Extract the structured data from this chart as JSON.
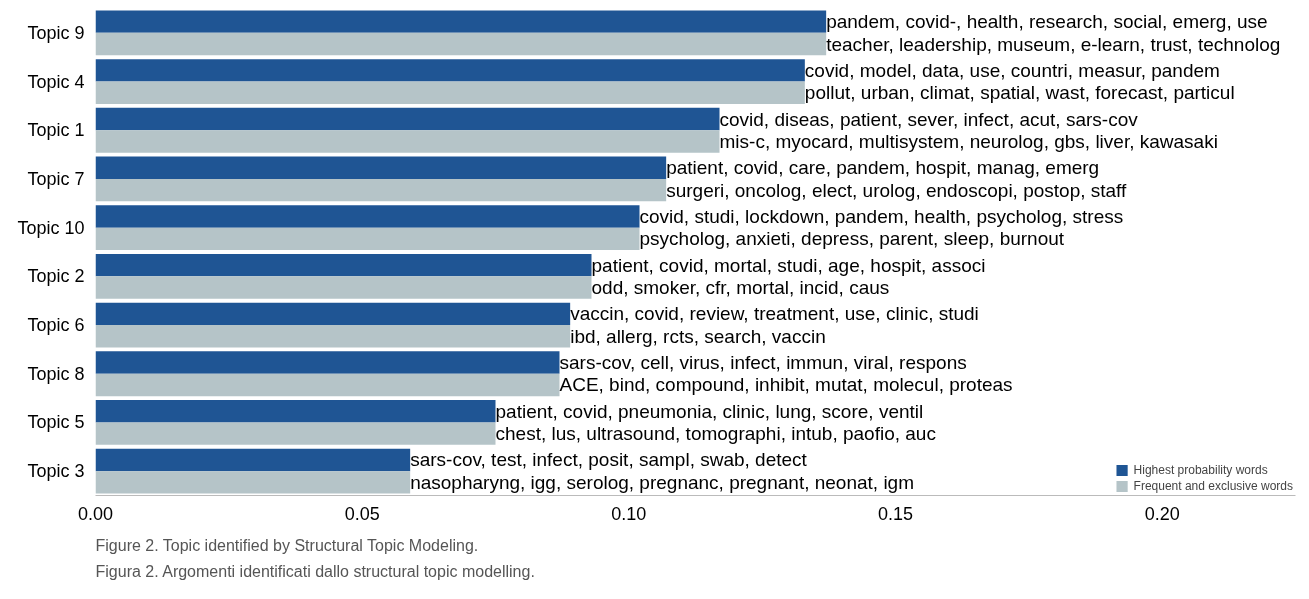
{
  "chart_data": {
    "type": "bar",
    "orientation": "horizontal",
    "categories": [
      "Topic 9",
      "Topic 4",
      "Topic 1",
      "Topic 7",
      "Topic 10",
      "Topic 2",
      "Topic 6",
      "Topic 8",
      "Topic 5",
      "Topic 3"
    ],
    "series": [
      {
        "name": "Highest probability words",
        "color": "#1f5594",
        "values": [
          0.137,
          0.133,
          0.117,
          0.107,
          0.102,
          0.093,
          0.089,
          0.087,
          0.075,
          0.059
        ],
        "value_labels": [
          "pandem, covid-, health, research, social, emerg, use",
          "covid, model, data, use, countri, measur, pandem",
          "covid, diseas, patient, sever, infect, acut, sars-cov",
          "patient, covid, care, pandem, hospit, manag, emerg",
          "covid, studi, lockdown, pandem, health, psycholog, stress",
          "patient, covid, mortal, studi, age, hospit, associ",
          "vaccin, covid, review, treatment, use, clinic, studi",
          "sars-cov, cell, virus, infect, immun, viral, respons",
          "patient, covid, pneumonia, clinic, lung, score, ventil",
          "sars-cov, test, infect, posit, sampl, swab, detect"
        ]
      },
      {
        "name": "Frequent and exclusive words",
        "color": "#b5c4c8",
        "values": [
          0.137,
          0.133,
          0.117,
          0.107,
          0.102,
          0.093,
          0.089,
          0.087,
          0.075,
          0.059
        ],
        "value_labels": [
          "teacher, leadership, museum, e-learn, trust, technolog",
          "pollut, urban, climat, spatial, wast, forecast, particul",
          "mis-c, myocard, multisystem, neurolog, gbs, liver, kawasaki",
          "surgeri, oncolog, elect, urolog, endoscopi, postop, staff",
          "psycholog, anxieti, depress, parent, sleep, burnout",
          "odd, smoker, cfr, mortal, incid, caus",
          "ibd, allerg, rcts, search, vaccin",
          "ACE, bind, compound, inhibit, mutat, molecul, proteas",
          "chest, lus, ultrasound, tomographi, intub, paofio, auc",
          "nasopharyng, igg, serolog, pregnanc, pregnant, neonat, igm"
        ]
      }
    ],
    "xlim": [
      0,
      0.225
    ],
    "xticks": [
      {
        "value": 0,
        "label": "0.00"
      },
      0.05,
      {
        "value": 0.1,
        "label": "0.10"
      },
      0.15,
      {
        "value": 0.2,
        "label": "0.20"
      }
    ],
    "grid": false,
    "legend": "bottom right",
    "annotations": [
      "Figure 2. Topic identified by Structural Topic Modeling.",
      "Figura 2. Argomenti identificati dallo structural topic modelling."
    ]
  }
}
